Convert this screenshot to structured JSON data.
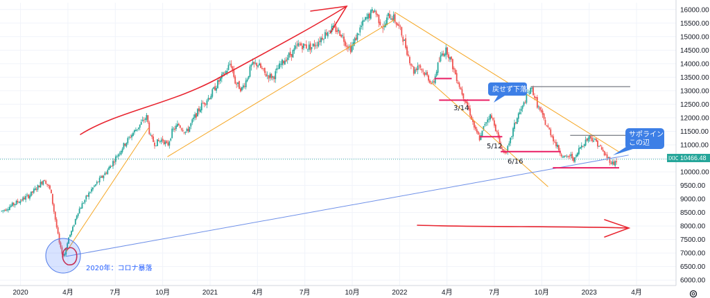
{
  "symbol": "IXIC",
  "last_price_label": "10466.48",
  "colors": {
    "up": "#26a69a",
    "down": "#ef5350",
    "accent_blue": "#2962ff",
    "callout_blue": "#3d7fe6",
    "trend_orange": "#f5a623",
    "pen_red": "#e8242f",
    "hline_pink": "#e91e63",
    "grid": "#f0f3fa"
  },
  "annotations": {
    "callout_top": "戻せず下落",
    "callout_right_line1": "サポライン",
    "callout_right_line2": "この辺",
    "label_mar14": "3/14",
    "label_may12": "5/12",
    "label_jun16": "6/16",
    "label_covid": "2020年：コロナ暴落"
  },
  "settings_icon": "gear-icon",
  "chart_data": {
    "type": "candlestick",
    "ylim": [
      5800,
      16250
    ],
    "y_ticks": [
      6000,
      6500,
      7000,
      7500,
      8000,
      8500,
      9000,
      9500,
      10000,
      10500,
      11000,
      11500,
      12000,
      12500,
      13000,
      13500,
      14000,
      14500,
      15000,
      15500,
      16000
    ],
    "y_tick_labels": [
      "6000.00",
      "6500.00",
      "7000.00",
      "7500.00",
      "8000.00",
      "8500.00",
      "9000.00",
      "9500.00",
      "10000.00",
      "10500.00",
      "11000.00",
      "11500.00",
      "12000.00",
      "12500.00",
      "13000.00",
      "13500.00",
      "14000.00",
      "14500.00",
      "15000.00",
      "15500.00",
      "16000.00"
    ],
    "x_ticks": [
      {
        "t": 0,
        "label": "2020"
      },
      {
        "t": 3,
        "label": "4月"
      },
      {
        "t": 6,
        "label": "7月"
      },
      {
        "t": 9,
        "label": "10月"
      },
      {
        "t": 12,
        "label": "2021"
      },
      {
        "t": 15,
        "label": "4月"
      },
      {
        "t": 18,
        "label": "7月"
      },
      {
        "t": 21,
        "label": "10月"
      },
      {
        "t": 24,
        "label": "2022"
      },
      {
        "t": 27,
        "label": "4月"
      },
      {
        "t": 30,
        "label": "7月"
      },
      {
        "t": 33,
        "label": "10月"
      },
      {
        "t": 36,
        "label": "2023"
      },
      {
        "t": 39,
        "label": "4月"
      }
    ],
    "x_range_months": [
      -1.3,
      41.5
    ],
    "series": [
      {
        "values": [
          [
            -1.2,
            8550
          ],
          [
            -0.6,
            8750
          ],
          [
            0.0,
            8950
          ],
          [
            0.6,
            9150
          ],
          [
            1.1,
            9450
          ],
          [
            1.5,
            9750
          ],
          [
            1.9,
            9300
          ],
          [
            2.1,
            8600
          ],
          [
            2.3,
            7900
          ],
          [
            2.5,
            7200
          ],
          [
            2.75,
            6860
          ],
          [
            3.0,
            7500
          ],
          [
            3.3,
            7900
          ],
          [
            3.6,
            8500
          ],
          [
            4.0,
            8900
          ],
          [
            4.5,
            9350
          ],
          [
            5.0,
            9700
          ],
          [
            5.5,
            10050
          ],
          [
            6.0,
            10500
          ],
          [
            6.5,
            10950
          ],
          [
            7.0,
            11350
          ],
          [
            7.5,
            11700
          ],
          [
            8.0,
            12050
          ],
          [
            8.2,
            11300
          ],
          [
            8.5,
            11050
          ],
          [
            9.0,
            11200
          ],
          [
            9.3,
            10950
          ],
          [
            9.6,
            11500
          ],
          [
            10.0,
            11750
          ],
          [
            10.5,
            11450
          ],
          [
            11.0,
            12000
          ],
          [
            11.5,
            12500
          ],
          [
            12.0,
            12800
          ],
          [
            12.5,
            13300
          ],
          [
            13.0,
            13700
          ],
          [
            13.3,
            14050
          ],
          [
            13.6,
            13300
          ],
          [
            14.0,
            13050
          ],
          [
            14.3,
            13400
          ],
          [
            14.6,
            13900
          ],
          [
            15.0,
            14000
          ],
          [
            15.5,
            13600
          ],
          [
            16.0,
            13500
          ],
          [
            16.4,
            13900
          ],
          [
            16.8,
            14200
          ],
          [
            17.2,
            14400
          ],
          [
            17.6,
            14700
          ],
          [
            18.0,
            14650
          ],
          [
            18.4,
            14600
          ],
          [
            18.8,
            14800
          ],
          [
            19.2,
            15050
          ],
          [
            19.6,
            15300
          ],
          [
            20.0,
            15250
          ],
          [
            20.3,
            15100
          ],
          [
            20.6,
            14750
          ],
          [
            20.9,
            14550
          ],
          [
            21.2,
            14900
          ],
          [
            21.5,
            15300
          ],
          [
            21.8,
            15600
          ],
          [
            22.1,
            15800
          ],
          [
            22.4,
            16000
          ],
          [
            22.7,
            15600
          ],
          [
            23.0,
            15300
          ],
          [
            23.3,
            15800
          ],
          [
            23.6,
            15700
          ],
          [
            24.0,
            15300
          ],
          [
            24.3,
            14800
          ],
          [
            24.6,
            14200
          ],
          [
            24.9,
            13700
          ],
          [
            25.2,
            14000
          ],
          [
            25.5,
            13700
          ],
          [
            25.8,
            13500
          ],
          [
            26.1,
            13200
          ],
          [
            26.4,
            13900
          ],
          [
            26.7,
            14400
          ],
          [
            27.0,
            14500
          ],
          [
            27.3,
            14000
          ],
          [
            27.6,
            13500
          ],
          [
            27.9,
            13000
          ],
          [
            28.2,
            12600
          ],
          [
            28.5,
            12100
          ],
          [
            28.8,
            11500
          ],
          [
            29.1,
            11200
          ],
          [
            29.4,
            11800
          ],
          [
            29.7,
            12100
          ],
          [
            30.0,
            11800
          ],
          [
            30.3,
            11100
          ],
          [
            30.6,
            10700
          ],
          [
            30.9,
            10900
          ],
          [
            31.2,
            11600
          ],
          [
            31.5,
            12100
          ],
          [
            31.8,
            12400
          ],
          [
            32.1,
            12900
          ],
          [
            32.4,
            13050
          ],
          [
            32.7,
            12500
          ],
          [
            33.0,
            12100
          ],
          [
            33.3,
            11700
          ],
          [
            33.6,
            11400
          ],
          [
            33.9,
            11000
          ],
          [
            34.2,
            10700
          ],
          [
            34.5,
            10500
          ],
          [
            34.8,
            10600
          ],
          [
            35.1,
            10450
          ],
          [
            35.4,
            10900
          ],
          [
            35.7,
            11100
          ],
          [
            36.0,
            11300
          ],
          [
            36.3,
            11200
          ],
          [
            36.6,
            11000
          ],
          [
            36.9,
            10700
          ],
          [
            37.2,
            10500
          ],
          [
            37.5,
            10300
          ],
          [
            37.8,
            10450
          ]
        ]
      }
    ],
    "trend_lines": [
      {
        "from": [
          2.9,
          7050
        ],
        "to": [
          8.1,
          11620
        ]
      },
      {
        "from": [
          9.3,
          10560
        ],
        "to": [
          23.7,
          15630
        ]
      },
      {
        "from": [
          23.7,
          15900
        ],
        "to": [
          38.0,
          10700
        ]
      },
      {
        "from": [
          26.0,
          13300
        ],
        "to": [
          33.4,
          9450
        ]
      },
      {
        "from": [
          2.9,
          6880
        ],
        "to": [
          38.5,
          10620
        ]
      }
    ],
    "horizontal_levels": [
      {
        "from_t": 26.2,
        "to_t": 27.3,
        "y": 13450
      },
      {
        "from_t": 26.5,
        "to_t": 29.7,
        "y": 12650
      },
      {
        "from_t": 29.1,
        "to_t": 30.5,
        "y": 11300
      },
      {
        "from_t": 30.4,
        "to_t": 34.2,
        "y": 10750
      },
      {
        "from_t": 33.7,
        "to_t": 37.9,
        "y": 10150
      }
    ],
    "gray_levels": [
      {
        "from_t": 32.3,
        "to_t": 38.6,
        "y": 13150
      },
      {
        "from_t": 34.8,
        "to_t": 38.4,
        "y": 11350
      }
    ],
    "current_value": 10466.48
  }
}
